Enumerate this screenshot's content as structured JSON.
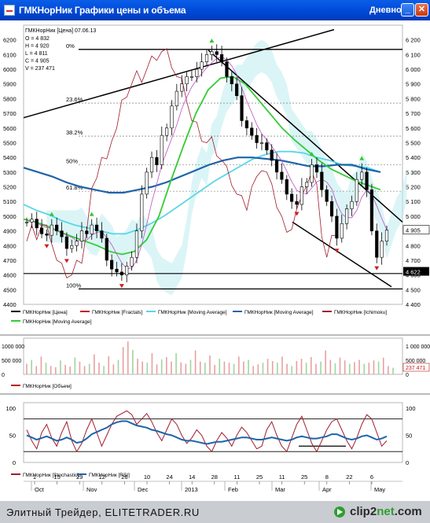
{
  "window": {
    "title": "ГМКНорНик Графики цены и объема",
    "period": "Дневной",
    "min_button": "_",
    "max_button": "□",
    "close_button": "✕"
  },
  "footer": {
    "site": "Элитный Трейдер, ELITETRADER.RU",
    "brand_a": "clip2",
    "brand_b": "net",
    "brand_c": ".com"
  },
  "chart_data": [
    {
      "type": "candlestick",
      "header": "ГМКНорНик [Цена] 07.06.13",
      "ohlcv_labels": [
        "O = 4 832",
        "H = 4 920",
        "L = 4 811",
        "C = 4 905",
        "V = 237 471"
      ],
      "ylim": [
        4400,
        6300
      ],
      "y_ticks": [
        4400,
        4500,
        4600,
        4700,
        4800,
        4900,
        5000,
        5100,
        5200,
        5300,
        5400,
        5500,
        5600,
        5700,
        5800,
        5900,
        6000,
        6100,
        6200
      ],
      "y_tick_labels": [
        "4 400",
        "4 500",
        "4 600",
        "4 700",
        "4 800",
        "4 900",
        "5 000",
        "5 100",
        "5 200",
        "5 300",
        "5 400",
        "5 500",
        "5 600",
        "5 700",
        "5 800",
        "5 900",
        "6 000",
        "6 100",
        "6 200"
      ],
      "fib_levels": [
        {
          "label": "0%",
          "value": 6135
        },
        {
          "label": "23.6%",
          "value": 5770
        },
        {
          "label": "38.2%",
          "value": 5545
        },
        {
          "label": "50%",
          "value": 5350
        },
        {
          "label": "61.8%",
          "value": 5170
        },
        {
          "label": "100%",
          "value": 4505
        }
      ],
      "extra_hlines": [
        4610
      ],
      "last_price_label": "4 905",
      "price_flag": "4 622",
      "close_path": [
        4960,
        4980,
        4920,
        4880,
        4870,
        4940,
        4900,
        4860,
        4780,
        4800,
        4830,
        4900,
        4880,
        4940,
        4900,
        4850,
        4700,
        4640,
        4620,
        4600,
        4660,
        4720,
        4900,
        5150,
        5300,
        5400,
        5350,
        5550,
        5600,
        5750,
        5850,
        5900,
        5950,
        5950,
        6000,
        6050,
        6100,
        6120,
        6100,
        6050,
        5950,
        5900,
        5820,
        5650,
        5600,
        5550,
        5500,
        5500,
        5450,
        5380,
        5300,
        5250,
        5150,
        5100,
        5080,
        5200,
        5230,
        5350,
        5300,
        5180,
        5100,
        5000,
        4850,
        4950,
        5050,
        5100,
        5250,
        5300,
        5180,
        4900,
        4720,
        4830,
        4905
      ],
      "ma_series": [
        {
          "name": "ГМКНорНик [Moving Average]",
          "color": "#5ad6e8",
          "values": [
            5080,
            5040,
            5010,
            4970,
            4940,
            4920,
            4900,
            4880,
            4880,
            4910,
            4950,
            5000,
            5060,
            5120,
            5180,
            5240,
            5290,
            5340,
            5390,
            5420,
            5440,
            5440,
            5430,
            5400,
            5380,
            5350,
            5340,
            5330,
            5300
          ]
        },
        {
          "name": "ГМКНорНик [Moving Average]",
          "color": "#1e64a8",
          "values": [
            5330,
            5300,
            5270,
            5230,
            5200,
            5180,
            5160,
            5160,
            5180,
            5200,
            5230,
            5270,
            5310,
            5350,
            5380,
            5400,
            5400,
            5390,
            5380,
            5360,
            5340,
            5340,
            5350,
            5350,
            5320,
            5300
          ]
        },
        {
          "name": "ГМКНорНик [Moving Average]",
          "color": "#33cc33",
          "values": [
            4980,
            4960,
            4930,
            4890,
            4860,
            4830,
            4800,
            4760,
            4740,
            4760,
            4840,
            5000,
            5250,
            5480,
            5700,
            5860,
            5940,
            5950,
            5900,
            5800,
            5700,
            5600,
            5520,
            5450,
            5380,
            5320,
            5280,
            5240,
            5210,
            5180
          ]
        }
      ],
      "legend": [
        {
          "name": "ГМКНорНик [Цена]",
          "color": "#000000"
        },
        {
          "name": "ГМКНорНик [Fractals]",
          "color": "#c01818"
        },
        {
          "name": "ГМКНорНик [Moving Average]",
          "color": "#5ad6e8"
        },
        {
          "name": "ГМКНорНик [Moving Average]",
          "color": "#1e64a8"
        },
        {
          "name": "ГМКНорНик [Ichimoku]",
          "color": "#a01c2c"
        },
        {
          "name": "ГМКНорНик [Moving Average]",
          "color": "#33cc33"
        }
      ]
    },
    {
      "type": "bar",
      "title": "ГМКНорНик [Объем]",
      "ylim": [
        0,
        1300000
      ],
      "y_tick_labels_left": [
        "1000 000",
        "500 000",
        "0"
      ],
      "y_tick_labels_right": [
        "1 000 000",
        "500 000",
        "0"
      ],
      "last_label": "237 471",
      "values": [
        380,
        520,
        300,
        640,
        420,
        300,
        260,
        500,
        340,
        280,
        610,
        460,
        300,
        380,
        720,
        420,
        300,
        650,
        360,
        520,
        980,
        1180,
        880,
        560,
        460,
        420,
        760,
        360,
        540,
        620,
        460,
        760,
        430,
        380,
        520,
        860,
        460,
        420,
        680,
        340,
        560,
        460,
        420,
        380,
        640,
        460,
        520,
        300,
        360,
        420,
        560,
        480,
        420,
        640,
        380,
        300,
        480,
        560,
        420,
        620,
        380,
        460,
        860,
        520,
        400,
        600,
        500,
        380,
        440,
        520,
        380,
        420,
        500,
        460,
        600,
        300,
        237
      ],
      "legend": [
        {
          "name": "ГМКНорНик [Объем]",
          "color": "#c01818"
        }
      ]
    },
    {
      "type": "line",
      "ylim": [
        0,
        110
      ],
      "y_tick_labels": [
        "100",
        "50",
        "0"
      ],
      "hlines": [
        80,
        20
      ],
      "series": [
        {
          "name": "ГМКНорНик [Stochastic]",
          "color": "#a01c2c",
          "values": [
            60,
            40,
            25,
            55,
            70,
            45,
            30,
            55,
            75,
            40,
            20,
            35,
            60,
            80,
            55,
            30,
            50,
            70,
            85,
            90,
            95,
            88,
            70,
            80,
            90,
            75,
            55,
            40,
            60,
            80,
            70,
            50,
            35,
            45,
            60,
            50,
            30,
            20,
            40,
            55,
            45,
            30,
            50,
            65,
            55,
            40,
            25,
            30,
            60,
            75,
            50,
            30,
            20,
            45,
            70,
            85,
            60,
            35,
            20,
            40,
            60,
            75,
            80,
            60,
            40,
            25,
            45,
            70,
            88,
            80,
            55,
            30,
            40
          ]
        },
        {
          "name": "ГМКНорНик [RSI]",
          "color": "#1e64a8",
          "values": [
            50,
            46,
            42,
            45,
            48,
            44,
            40,
            42,
            46,
            42,
            36,
            38,
            44,
            52,
            56,
            60,
            64,
            70,
            74,
            76,
            76,
            72,
            68,
            66,
            64,
            60,
            58,
            55,
            52,
            50,
            46,
            42,
            40,
            40,
            38,
            36,
            34,
            36,
            38,
            38,
            40,
            42,
            44,
            46,
            46,
            44,
            42,
            42,
            44,
            46,
            44,
            42,
            40,
            42,
            46,
            48,
            46,
            44,
            44,
            46,
            48,
            52,
            52,
            48,
            44,
            42,
            44,
            48,
            50,
            46,
            42,
            44,
            48
          ]
        }
      ],
      "legend": [
        {
          "name": "ГМКНорНик [Stochastic]",
          "color": "#a01c2c"
        },
        {
          "name": "ГМКНорНик [RSI]",
          "color": "#1e64a8"
        }
      ],
      "x_tick_labels": [
        "1",
        "15",
        "29",
        "12",
        "26",
        "10",
        "24",
        "14",
        "28",
        "11",
        "25",
        "11",
        "25",
        "8",
        "22",
        "6"
      ],
      "x_month_labels": [
        "Oct",
        "Nov",
        "Dec",
        "2013",
        "Feb",
        "Mar",
        "Apr",
        "May"
      ]
    }
  ]
}
